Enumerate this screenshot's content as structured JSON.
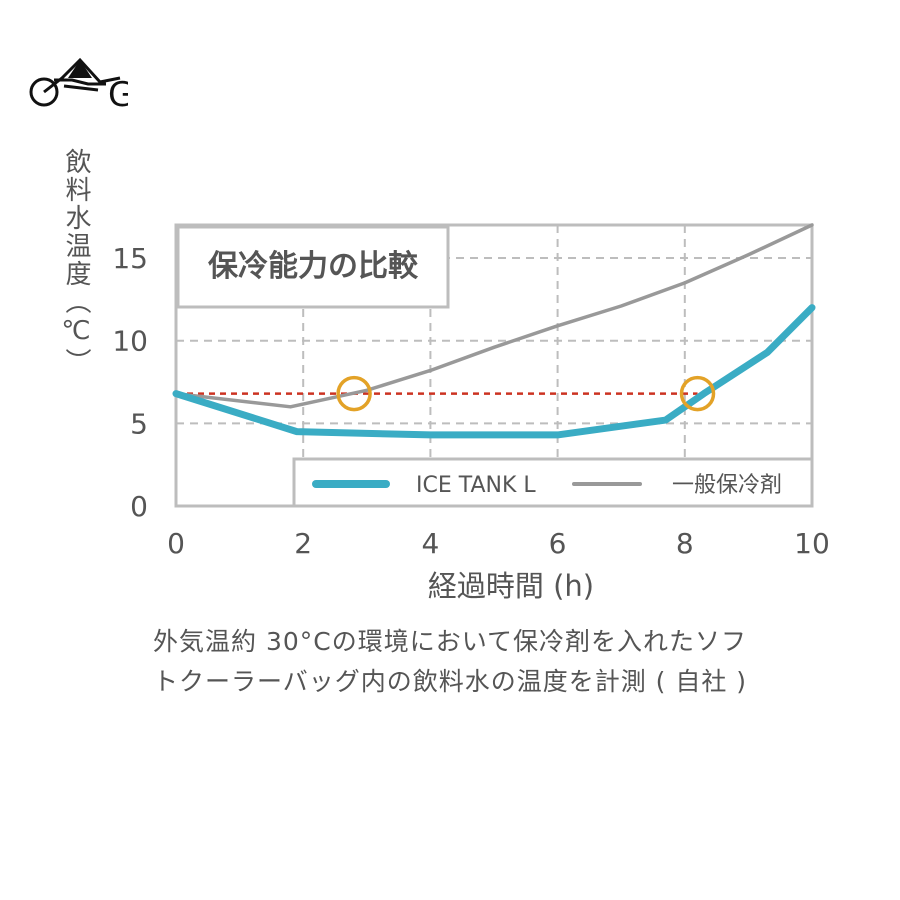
{
  "chart_data": {
    "type": "line",
    "title": "保冷能力の比較",
    "xlabel": "経過時間 (h)",
    "ylabel": "飲料水温度（℃）",
    "xlim": [
      0,
      10
    ],
    "ylim": [
      0,
      17
    ],
    "x_ticks": [
      "0",
      "2",
      "4",
      "6",
      "8",
      "10"
    ],
    "y_ticks": [
      "0",
      "5",
      "10",
      "15"
    ],
    "grid": true,
    "legend_position": "bottom-right",
    "series": [
      {
        "name": "ICE TANK L",
        "color": "#3aacc4",
        "x": [
          0,
          1.9,
          4,
          6,
          7.7,
          8.3,
          9.3,
          10
        ],
        "y": [
          6.8,
          4.5,
          4.3,
          4.3,
          5.2,
          6.8,
          9.3,
          12.0
        ]
      },
      {
        "name": "一般保冷剤",
        "color": "#999999",
        "x": [
          0,
          1.8,
          3,
          4,
          5,
          6,
          7,
          8,
          9,
          10
        ],
        "y": [
          6.8,
          6.0,
          7.0,
          8.2,
          9.6,
          10.9,
          12.1,
          13.5,
          15.2,
          17.0
        ]
      }
    ],
    "reference_line": {
      "y": 6.8,
      "color": "#cc3322"
    },
    "markers": [
      {
        "x": 2.8,
        "y": 6.8,
        "color": "#e3a227"
      },
      {
        "x": 8.2,
        "y": 6.8,
        "color": "#e3a227"
      }
    ]
  },
  "caption": {
    "line1": "外気温約 30°Cの環境において保冷剤を入れたソフ",
    "line2": "トクーラーバッグ内の飲料水の温度を計測 ( 自社 )"
  },
  "logo": {
    "letter": "G"
  }
}
